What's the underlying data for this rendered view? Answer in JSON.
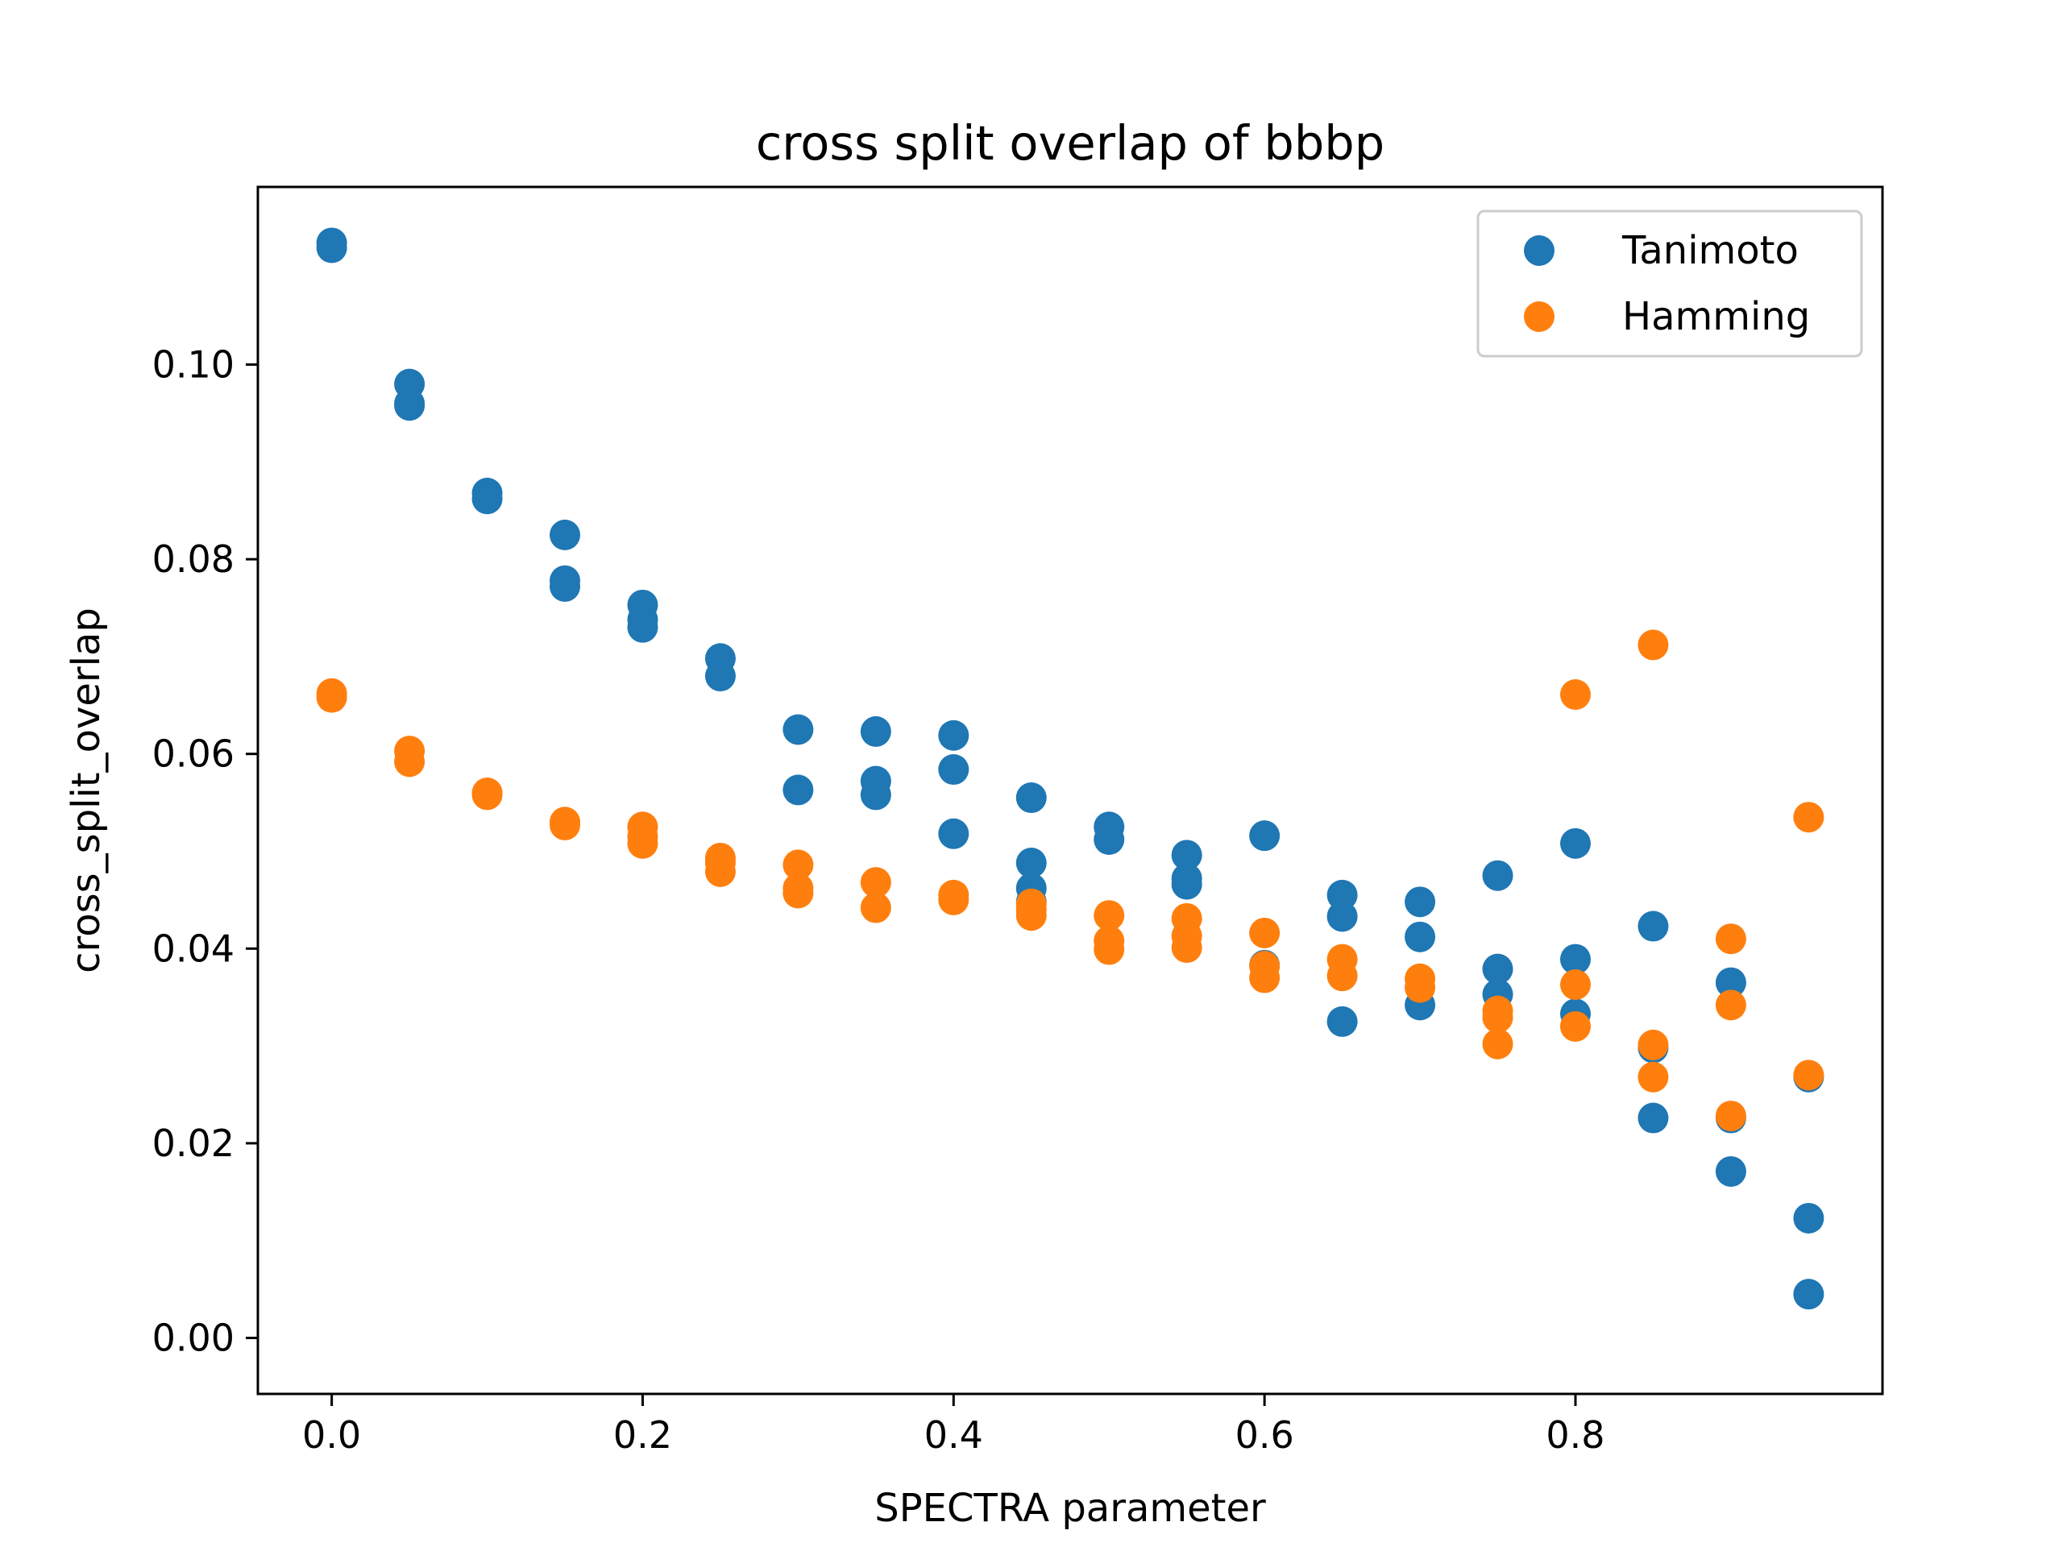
{
  "chart_data": {
    "type": "scatter",
    "title": "cross split overlap of bbbp",
    "xlabel": "SPECTRA parameter",
    "ylabel": "cross_split_overlap",
    "xlim": [
      -0.0475,
      0.9975
    ],
    "ylim": [
      -0.00575,
      0.11825
    ],
    "xticks": [
      0.0,
      0.2,
      0.4,
      0.6,
      0.8
    ],
    "xtick_labels": [
      "0.0",
      "0.2",
      "0.4",
      "0.6",
      "0.8"
    ],
    "yticks": [
      0.0,
      0.02,
      0.04,
      0.06,
      0.08,
      0.1
    ],
    "ytick_labels": [
      "0.00",
      "0.02",
      "0.04",
      "0.06",
      "0.08",
      "0.10"
    ],
    "grid": false,
    "legend_position": "top-right",
    "series": [
      {
        "name": "Tanimoto",
        "color": "#1f77b4",
        "points": [
          [
            0.0,
            0.1125
          ],
          [
            0.0,
            0.112
          ],
          [
            0.05,
            0.098
          ],
          [
            0.05,
            0.096
          ],
          [
            0.05,
            0.0958
          ],
          [
            0.1,
            0.0868
          ],
          [
            0.1,
            0.0862
          ],
          [
            0.15,
            0.0825
          ],
          [
            0.15,
            0.0778
          ],
          [
            0.15,
            0.0772
          ],
          [
            0.2,
            0.0753
          ],
          [
            0.2,
            0.0738
          ],
          [
            0.2,
            0.073
          ],
          [
            0.25,
            0.0698
          ],
          [
            0.25,
            0.068
          ],
          [
            0.3,
            0.0625
          ],
          [
            0.3,
            0.0563
          ],
          [
            0.35,
            0.0623
          ],
          [
            0.35,
            0.0572
          ],
          [
            0.35,
            0.0558
          ],
          [
            0.4,
            0.0619
          ],
          [
            0.4,
            0.0584
          ],
          [
            0.4,
            0.0518
          ],
          [
            0.45,
            0.0555
          ],
          [
            0.45,
            0.0488
          ],
          [
            0.45,
            0.0462
          ],
          [
            0.45,
            0.0448
          ],
          [
            0.5,
            0.0525
          ],
          [
            0.5,
            0.0512
          ],
          [
            0.55,
            0.0496
          ],
          [
            0.55,
            0.0472
          ],
          [
            0.55,
            0.0466
          ],
          [
            0.6,
            0.0516
          ],
          [
            0.6,
            0.0383
          ],
          [
            0.65,
            0.0455
          ],
          [
            0.65,
            0.0433
          ],
          [
            0.65,
            0.0325
          ],
          [
            0.7,
            0.0448
          ],
          [
            0.7,
            0.0412
          ],
          [
            0.7,
            0.0342
          ],
          [
            0.75,
            0.0475
          ],
          [
            0.75,
            0.0379
          ],
          [
            0.75,
            0.0353
          ],
          [
            0.8,
            0.0508
          ],
          [
            0.8,
            0.0389
          ],
          [
            0.8,
            0.0333
          ],
          [
            0.85,
            0.0423
          ],
          [
            0.85,
            0.0298
          ],
          [
            0.85,
            0.0226
          ],
          [
            0.9,
            0.0365
          ],
          [
            0.9,
            0.0226
          ],
          [
            0.9,
            0.0171
          ],
          [
            0.95,
            0.0268
          ],
          [
            0.95,
            0.0123
          ],
          [
            0.95,
            0.0045
          ]
        ]
      },
      {
        "name": "Hamming",
        "color": "#ff7f0e",
        "points": [
          [
            0.0,
            0.0662
          ],
          [
            0.0,
            0.0658
          ],
          [
            0.05,
            0.0603
          ],
          [
            0.05,
            0.0592
          ],
          [
            0.1,
            0.056
          ],
          [
            0.1,
            0.0558
          ],
          [
            0.15,
            0.053
          ],
          [
            0.15,
            0.0527
          ],
          [
            0.2,
            0.0525
          ],
          [
            0.2,
            0.0515
          ],
          [
            0.2,
            0.0508
          ],
          [
            0.25,
            0.0493
          ],
          [
            0.25,
            0.0488
          ],
          [
            0.25,
            0.0479
          ],
          [
            0.3,
            0.0486
          ],
          [
            0.3,
            0.0462
          ],
          [
            0.3,
            0.0457
          ],
          [
            0.35,
            0.0468
          ],
          [
            0.35,
            0.0442
          ],
          [
            0.4,
            0.0455
          ],
          [
            0.4,
            0.045
          ],
          [
            0.45,
            0.0446
          ],
          [
            0.45,
            0.044
          ],
          [
            0.45,
            0.0434
          ],
          [
            0.5,
            0.0434
          ],
          [
            0.5,
            0.0408
          ],
          [
            0.5,
            0.0399
          ],
          [
            0.55,
            0.0431
          ],
          [
            0.55,
            0.0413
          ],
          [
            0.55,
            0.0401
          ],
          [
            0.6,
            0.0416
          ],
          [
            0.6,
            0.0382
          ],
          [
            0.6,
            0.037
          ],
          [
            0.65,
            0.0389
          ],
          [
            0.65,
            0.0372
          ],
          [
            0.7,
            0.0369
          ],
          [
            0.7,
            0.036
          ],
          [
            0.75,
            0.0336
          ],
          [
            0.75,
            0.0329
          ],
          [
            0.75,
            0.0302
          ],
          [
            0.8,
            0.0661
          ],
          [
            0.8,
            0.0363
          ],
          [
            0.8,
            0.032
          ],
          [
            0.85,
            0.0712
          ],
          [
            0.85,
            0.0301
          ],
          [
            0.85,
            0.0268
          ],
          [
            0.9,
            0.041
          ],
          [
            0.9,
            0.0342
          ],
          [
            0.9,
            0.0228
          ],
          [
            0.95,
            0.0535
          ],
          [
            0.95,
            0.027
          ]
        ]
      }
    ]
  }
}
